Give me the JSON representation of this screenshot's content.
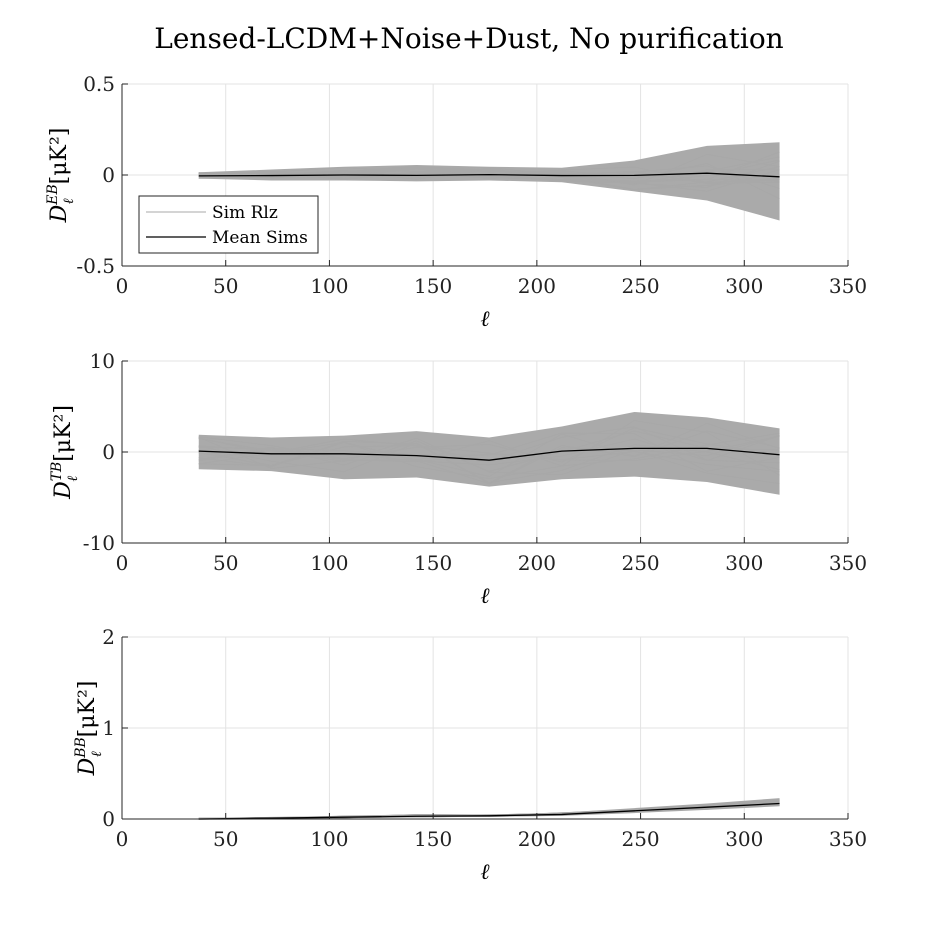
{
  "title": "Lensed-LCDM+Noise+Dust, No purification",
  "legend": {
    "items": [
      {
        "label": "Sim Rlz",
        "color": "#aaaaaa"
      },
      {
        "label": "Mean Sims",
        "color": "#000000"
      }
    ],
    "placement": "bottom-left (top panel)"
  },
  "chart_data": [
    {
      "type": "line",
      "ylabel_main": "D",
      "ylabel_sup": "EB",
      "ylabel_sub": "ℓ",
      "ylabel_unit": "[μK²]",
      "xlabel": "ℓ",
      "xlim": [
        0,
        350
      ],
      "ylim": [
        -0.5,
        0.5
      ],
      "xticks": [
        "0",
        "50",
        "100",
        "150",
        "200",
        "250",
        "300",
        "350"
      ],
      "yticks": [
        "-0.5",
        "0",
        "0.5"
      ],
      "grid": true,
      "x": [
        37,
        72,
        107,
        142,
        177,
        212,
        247,
        282,
        317
      ],
      "series": [
        {
          "name": "Mean Sims",
          "values": [
            -0.005,
            -0.003,
            0.0,
            -0.002,
            0.002,
            -0.003,
            -0.002,
            0.01,
            -0.01
          ]
        },
        {
          "name": "Sim Rlz",
          "upper": [
            0.015,
            0.03,
            0.045,
            0.055,
            0.045,
            0.04,
            0.08,
            0.16,
            0.18
          ],
          "lower": [
            -0.02,
            -0.03,
            -0.03,
            -0.035,
            -0.03,
            -0.04,
            -0.09,
            -0.14,
            -0.25
          ]
        }
      ]
    },
    {
      "type": "line",
      "ylabel_main": "D",
      "ylabel_sup": "TB",
      "ylabel_sub": "ℓ",
      "ylabel_unit": "[μK²]",
      "xlabel": "ℓ",
      "xlim": [
        0,
        350
      ],
      "ylim": [
        -10,
        10
      ],
      "xticks": [
        "0",
        "50",
        "100",
        "150",
        "200",
        "250",
        "300",
        "350"
      ],
      "yticks": [
        "-10",
        "0",
        "10"
      ],
      "grid": true,
      "x": [
        37,
        72,
        107,
        142,
        177,
        212,
        247,
        282,
        317
      ],
      "series": [
        {
          "name": "Mean Sims",
          "values": [
            0.1,
            -0.2,
            -0.2,
            -0.4,
            -0.9,
            0.1,
            0.4,
            0.4,
            -0.3
          ]
        },
        {
          "name": "Sim Rlz",
          "upper": [
            1.9,
            1.6,
            1.8,
            2.3,
            1.6,
            2.8,
            4.4,
            3.8,
            2.6
          ],
          "lower": [
            -1.9,
            -2.1,
            -3.0,
            -2.8,
            -3.8,
            -3.0,
            -2.7,
            -3.3,
            -4.7
          ]
        }
      ]
    },
    {
      "type": "line",
      "ylabel_main": "D",
      "ylabel_sup": "BB",
      "ylabel_sub": "ℓ",
      "ylabel_unit": "[μK²]",
      "xlabel": "ℓ",
      "xlim": [
        0,
        350
      ],
      "ylim": [
        0,
        2
      ],
      "xticks": [
        "0",
        "50",
        "100",
        "150",
        "200",
        "250",
        "300",
        "350"
      ],
      "yticks": [
        "0",
        "1",
        "2"
      ],
      "grid": true,
      "x": [
        37,
        72,
        107,
        142,
        177,
        212,
        247,
        282,
        317
      ],
      "series": [
        {
          "name": "Mean Sims",
          "values": [
            0.0,
            0.01,
            0.02,
            0.03,
            0.035,
            0.05,
            0.09,
            0.13,
            0.17
          ]
        },
        {
          "name": "Sim Rlz",
          "upper": [
            0.01,
            0.02,
            0.035,
            0.05,
            0.05,
            0.07,
            0.12,
            0.17,
            0.23
          ],
          "lower": [
            -0.005,
            0.0,
            0.01,
            0.02,
            0.025,
            0.035,
            0.065,
            0.1,
            0.14
          ]
        }
      ]
    }
  ]
}
